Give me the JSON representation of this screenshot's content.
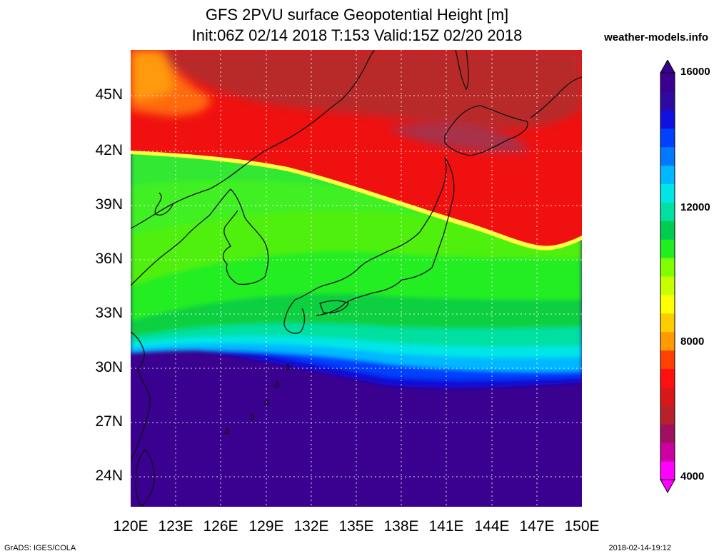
{
  "title_line1": "GFS 2PVU surface Geopotential Height [m]",
  "title_line2": "Init:06Z 02/14 2018 T:153 Valid:15Z 02/20 2018",
  "site": "weather-models.info",
  "footer_left": "GrADS: IGES/COLA",
  "footer_right": "2018-02-14-19:12",
  "map": {
    "lon_range": [
      120,
      150
    ],
    "lat_range": [
      22.5,
      47
    ],
    "lat_labels": [
      "45N",
      "42N",
      "39N",
      "36N",
      "33N",
      "30N",
      "27N",
      "24N"
    ],
    "lon_labels": [
      "120E",
      "123E",
      "126E",
      "129E",
      "132E",
      "135E",
      "138E",
      "141E",
      "144E",
      "147E",
      "150E"
    ],
    "variable": "Geopotential Height",
    "units": "m"
  },
  "colorbar": {
    "labels": [
      "16000",
      "12000",
      "8000",
      "4000"
    ],
    "colors": [
      "#ff00ff",
      "#cc00a0",
      "#a01060",
      "#b8202a",
      "#d81818",
      "#ff1010",
      "#ff4000",
      "#ff9a00",
      "#ffcc00",
      "#ffff00",
      "#c8ff00",
      "#80ff00",
      "#20ee20",
      "#00cc50",
      "#00e0a0",
      "#00e6e6",
      "#00b8ff",
      "#0078ff",
      "#0040ff",
      "#1010e0",
      "#2e0aa0",
      "#3a0090"
    ]
  }
}
